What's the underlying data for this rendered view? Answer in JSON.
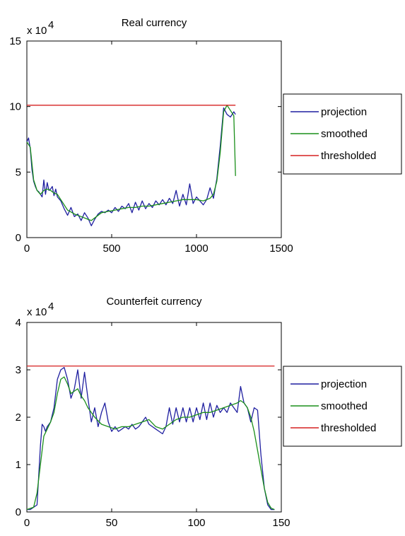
{
  "chart_data": [
    {
      "type": "line",
      "title": "Real currency",
      "y_multiplier_label": "x 10",
      "y_multiplier_exponent": "4",
      "xlim": [
        0,
        1500
      ],
      "ylim": [
        0,
        15
      ],
      "x_ticks": [
        "0",
        "500",
        "1000",
        "1500"
      ],
      "y_ticks": [
        "0",
        "5",
        "10",
        "15"
      ],
      "grid": false,
      "legend_position": "right",
      "legend": [
        "projection",
        "smoothed",
        "thresholded"
      ],
      "colors": {
        "projection": "#1f1fa0",
        "smoothed": "#1a8f1a",
        "thresholded": "#d62020"
      },
      "series": [
        {
          "name": "projection",
          "x": [
            0,
            10,
            20,
            30,
            40,
            50,
            60,
            70,
            80,
            90,
            100,
            110,
            120,
            130,
            140,
            150,
            160,
            170,
            180,
            200,
            220,
            240,
            260,
            280,
            300,
            320,
            340,
            360,
            380,
            400,
            420,
            440,
            460,
            480,
            500,
            520,
            540,
            560,
            580,
            600,
            620,
            640,
            660,
            680,
            700,
            720,
            740,
            760,
            780,
            800,
            820,
            840,
            860,
            880,
            900,
            920,
            940,
            960,
            980,
            1000,
            1020,
            1040,
            1060,
            1080,
            1100,
            1120,
            1140,
            1160,
            1180,
            1200,
            1220,
            1230
          ],
          "y": [
            7.3,
            7.6,
            6.8,
            5.2,
            4.3,
            3.9,
            3.6,
            3.5,
            3.3,
            3.1,
            4.4,
            3.3,
            4.2,
            3.6,
            3.7,
            3.9,
            3.2,
            3.7,
            3.1,
            2.8,
            2.2,
            1.7,
            2.3,
            1.6,
            1.8,
            1.3,
            1.9,
            1.5,
            0.9,
            1.4,
            1.8,
            2.0,
            1.9,
            2.1,
            1.9,
            2.3,
            2.0,
            2.4,
            2.2,
            2.6,
            1.9,
            2.7,
            2.1,
            2.8,
            2.2,
            2.6,
            2.3,
            2.8,
            2.5,
            2.9,
            2.5,
            3.0,
            2.6,
            3.6,
            2.4,
            3.3,
            2.5,
            4.1,
            2.6,
            3.1,
            2.8,
            2.5,
            2.9,
            3.8,
            3.0,
            4.5,
            7.0,
            9.9,
            9.4,
            9.2,
            9.6,
            9.4
          ]
        },
        {
          "name": "smoothed",
          "x": [
            0,
            20,
            40,
            60,
            80,
            100,
            120,
            140,
            160,
            180,
            200,
            240,
            280,
            320,
            360,
            380,
            400,
            440,
            480,
            520,
            560,
            600,
            640,
            680,
            720,
            760,
            800,
            840,
            880,
            920,
            960,
            1000,
            1040,
            1080,
            1100,
            1120,
            1140,
            1160,
            1180,
            1200,
            1220,
            1230
          ],
          "y": [
            7.3,
            6.9,
            4.4,
            3.6,
            3.3,
            3.6,
            3.7,
            3.6,
            3.4,
            3.3,
            2.9,
            2.1,
            1.8,
            1.6,
            1.4,
            1.3,
            1.5,
            1.9,
            2.0,
            2.1,
            2.2,
            2.3,
            2.3,
            2.4,
            2.4,
            2.5,
            2.6,
            2.7,
            2.8,
            2.9,
            2.9,
            2.9,
            2.8,
            3.0,
            3.3,
            4.3,
            6.5,
            9.6,
            10.1,
            9.7,
            9.3,
            4.7
          ]
        },
        {
          "name": "thresholded",
          "x": [
            0,
            1230
          ],
          "y": [
            10.1,
            10.1
          ]
        }
      ]
    },
    {
      "type": "line",
      "title": "Counterfeit currency",
      "y_multiplier_label": "x 10",
      "y_multiplier_exponent": "4",
      "xlim": [
        0,
        150
      ],
      "ylim": [
        0,
        4
      ],
      "x_ticks": [
        "0",
        "50",
        "100",
        "150"
      ],
      "y_ticks": [
        "0",
        "1",
        "2",
        "3",
        "4"
      ],
      "grid": false,
      "legend_position": "right",
      "legend": [
        "projection",
        "smoothed",
        "thresholded"
      ],
      "colors": {
        "projection": "#1f1fa0",
        "smoothed": "#1a8f1a",
        "thresholded": "#d62020"
      },
      "series": [
        {
          "name": "projection",
          "x": [
            0,
            2,
            4,
            6,
            8,
            9,
            10,
            11,
            12,
            14,
            16,
            18,
            20,
            22,
            24,
            26,
            28,
            30,
            32,
            34,
            36,
            38,
            40,
            42,
            44,
            46,
            48,
            50,
            52,
            54,
            56,
            58,
            60,
            62,
            64,
            66,
            68,
            70,
            72,
            74,
            76,
            78,
            80,
            82,
            84,
            86,
            88,
            90,
            92,
            94,
            96,
            98,
            100,
            102,
            104,
            106,
            108,
            110,
            112,
            114,
            116,
            118,
            120,
            122,
            124,
            126,
            128,
            130,
            132,
            134,
            136,
            138,
            140,
            142,
            144,
            146
          ],
          "y": [
            0.05,
            0.05,
            0.1,
            0.15,
            1.4,
            1.85,
            1.8,
            1.7,
            1.8,
            1.9,
            2.2,
            2.8,
            3.0,
            3.05,
            2.8,
            2.4,
            2.6,
            3.0,
            2.4,
            2.95,
            2.4,
            1.9,
            2.2,
            1.8,
            2.1,
            2.3,
            1.9,
            1.7,
            1.8,
            1.7,
            1.75,
            1.8,
            1.75,
            1.85,
            1.75,
            1.8,
            1.9,
            2.0,
            1.85,
            1.8,
            1.75,
            1.7,
            1.65,
            1.8,
            2.2,
            1.85,
            2.2,
            1.9,
            2.2,
            1.9,
            2.2,
            1.9,
            2.2,
            1.95,
            2.3,
            1.95,
            2.3,
            2.0,
            2.25,
            2.1,
            2.2,
            2.1,
            2.3,
            2.2,
            2.1,
            2.65,
            2.3,
            2.2,
            1.9,
            2.2,
            2.15,
            1.2,
            0.5,
            0.15,
            0.05,
            0.05
          ]
        },
        {
          "name": "smoothed",
          "x": [
            0,
            4,
            6,
            8,
            10,
            12,
            14,
            16,
            18,
            20,
            22,
            24,
            26,
            28,
            30,
            32,
            34,
            36,
            40,
            44,
            48,
            52,
            56,
            60,
            64,
            68,
            72,
            76,
            80,
            84,
            88,
            92,
            96,
            100,
            104,
            108,
            112,
            116,
            120,
            124,
            126,
            128,
            130,
            132,
            134,
            136,
            138,
            140,
            142,
            144,
            146
          ],
          "y": [
            0.05,
            0.1,
            0.4,
            1.0,
            1.6,
            1.75,
            1.9,
            2.1,
            2.5,
            2.8,
            2.85,
            2.7,
            2.5,
            2.55,
            2.6,
            2.45,
            2.35,
            2.2,
            2.0,
            1.85,
            1.8,
            1.75,
            1.8,
            1.8,
            1.85,
            1.9,
            1.95,
            1.8,
            1.75,
            1.85,
            1.95,
            2.0,
            2.0,
            2.05,
            2.1,
            2.1,
            2.15,
            2.2,
            2.25,
            2.3,
            2.35,
            2.3,
            2.2,
            2.0,
            1.7,
            1.3,
            0.9,
            0.5,
            0.2,
            0.08,
            0.05
          ]
        },
        {
          "name": "thresholded",
          "x": [
            0,
            146
          ],
          "y": [
            3.08,
            3.08
          ]
        }
      ]
    }
  ]
}
